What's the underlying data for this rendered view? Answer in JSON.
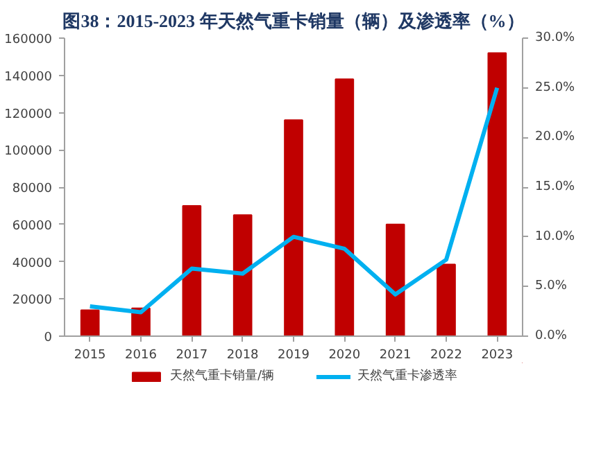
{
  "chart_data": {
    "type": "bar",
    "title": "图38：2015-2023 年天然气重卡销量（辆）及渗透率（%）",
    "categories": [
      "2015",
      "2016",
      "2017",
      "2018",
      "2019",
      "2020",
      "2021",
      "2022",
      "2023"
    ],
    "series": [
      {
        "name": "天然气重卡销量/辆",
        "type": "bar",
        "color": "#c00000",
        "values": [
          14000,
          15000,
          70000,
          65000,
          116000,
          138000,
          60000,
          38500,
          152000
        ]
      },
      {
        "name": "天然气重卡渗透率",
        "type": "line",
        "axis": "y2",
        "color": "#00b0f0",
        "values": [
          3.0,
          2.4,
          6.8,
          6.3,
          10.0,
          8.8,
          4.2,
          7.7,
          25.0
        ]
      }
    ],
    "ylim": [
      0,
      160000
    ],
    "yticks": [
      0,
      20000,
      40000,
      60000,
      80000,
      100000,
      120000,
      140000,
      160000
    ],
    "y2lim": [
      0,
      30
    ],
    "y2ticks": [
      {
        "value": 0,
        "label": "0.0%"
      },
      {
        "value": 5,
        "label": "5.0%"
      },
      {
        "value": 10,
        "label": "10.0%"
      },
      {
        "value": 15,
        "label": "15.0%"
      },
      {
        "value": 20,
        "label": "20.0%"
      },
      {
        "value": 25,
        "label": "25.0%"
      },
      {
        "value": 30,
        "label": "30.0%"
      }
    ],
    "grid": false,
    "legend": "bottom",
    "marker": "none",
    "line_style": "solid"
  }
}
